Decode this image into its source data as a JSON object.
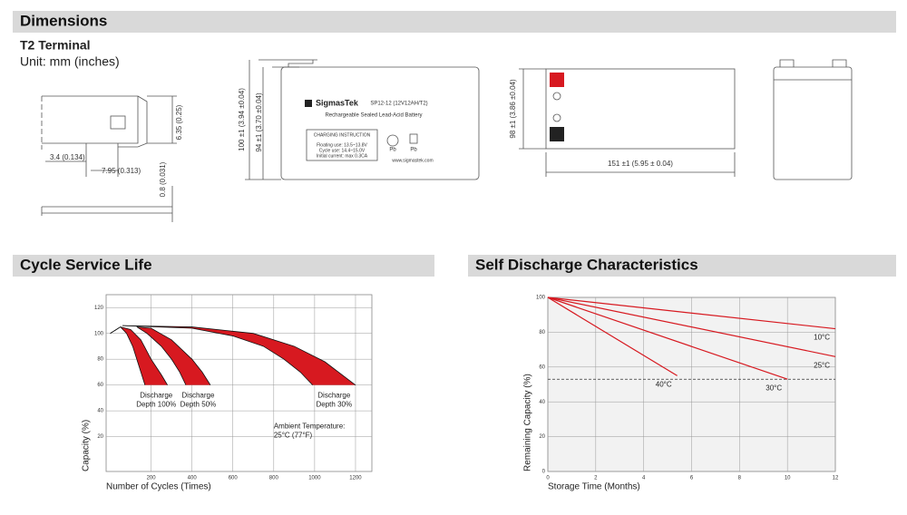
{
  "dimensions": {
    "title": "Dimensions",
    "terminal": "T2 Terminal",
    "unit": "Unit: mm (inches)",
    "terminal_dims": [
      "3.4 (0.134)",
      "7.95 (0.313)",
      "6.35 (0.25)",
      "0.8 (0.031)"
    ],
    "front_dims": [
      "100 ±1 (3.94 ±0.04)",
      "94 ±1 (3.70 ±0.04)"
    ],
    "top_dims": [
      "98 ±1 (3.86 ±0.04)",
      "151 ±1 (5.95 ± 0.04)"
    ],
    "battery_label": {
      "brand": "SigmasTek",
      "model": "SP12-12 (12V12AH/T2)",
      "desc": "Rechargeable Sealed Lead-Acid Battery",
      "charging_title": "CHARGING INSTRUCTION",
      "charging": [
        "Floating use: 13.5~13.8V",
        "Cycle use: 14.4~15.0V",
        "Initial current: max 0.3CA"
      ],
      "pb": [
        "Pb",
        "Pb"
      ],
      "website": "www.sigmastek.com"
    }
  },
  "chart_data": [
    {
      "type": "band",
      "title": "Cycle Service Life",
      "xlabel": "Number of Cycles (Times)",
      "ylabel": "Capacity (%)",
      "xlim": [
        -20,
        1280
      ],
      "ylim": [
        -7,
        130
      ],
      "xticks": [
        200,
        400,
        600,
        800,
        1000,
        1200
      ],
      "yticks": [
        20,
        40,
        60,
        80,
        100,
        120
      ],
      "grid": true,
      "color": "#d71920",
      "annotation": [
        "Ambient Temperature:",
        "25°C (77°F)"
      ],
      "series": [
        {
          "label": [
            "Discharge",
            "Depth 100%"
          ],
          "upper": {
            "x": [
              0,
              50,
              100,
              150,
              200,
              250,
              280
            ],
            "values": [
              100,
              105,
              103,
              95,
              80,
              68,
              60
            ]
          },
          "lower": {
            "x": [
              0,
              50,
              80,
              110,
              140,
              160,
              170
            ],
            "values": [
              100,
              105,
              100,
              90,
              75,
              65,
              60
            ]
          }
        },
        {
          "label": [
            "Discharge",
            "Depth 50%"
          ],
          "upper": {
            "x": [
              130,
              200,
              300,
              400,
              450,
              490
            ],
            "values": [
              105,
              104,
              95,
              80,
              70,
              60
            ]
          },
          "lower": {
            "x": [
              130,
              180,
              250,
              300,
              340,
              370
            ],
            "values": [
              105,
              100,
              90,
              80,
              70,
              60
            ]
          }
        },
        {
          "label": [
            "Discharge",
            "Depth 30%"
          ],
          "upper": {
            "x": [
              60,
              400,
              700,
              900,
              1050,
              1200
            ],
            "values": [
              106,
              105,
              100,
              90,
              78,
              60
            ]
          },
          "lower": {
            "x": [
              60,
              400,
              600,
              750,
              850,
              930,
              990
            ],
            "values": [
              106,
              104,
              98,
              90,
              80,
              70,
              60
            ]
          }
        }
      ]
    },
    {
      "type": "line",
      "title": "Self Discharge Characteristics",
      "xlabel": "Storage Time (Months)",
      "ylabel": "Remaining Capacity (%)",
      "xlim": [
        0,
        12
      ],
      "ylim": [
        0,
        100
      ],
      "xticks": [
        0,
        2,
        4,
        6,
        8,
        10,
        12
      ],
      "yticks": [
        0,
        20,
        40,
        60,
        80,
        100
      ],
      "grid": true,
      "reference": 53,
      "series": [
        {
          "name": "10°C",
          "color": "#d71920",
          "x": [
            0,
            12
          ],
          "values": [
            100,
            82
          ]
        },
        {
          "name": "25°C",
          "color": "#d71920",
          "x": [
            0,
            12
          ],
          "values": [
            100,
            66
          ]
        },
        {
          "name": "30°C",
          "color": "#d71920",
          "x": [
            0,
            10
          ],
          "values": [
            100,
            53
          ]
        },
        {
          "name": "40°C",
          "color": "#d71920",
          "x": [
            0,
            5.4
          ],
          "values": [
            100,
            55
          ]
        }
      ]
    }
  ]
}
